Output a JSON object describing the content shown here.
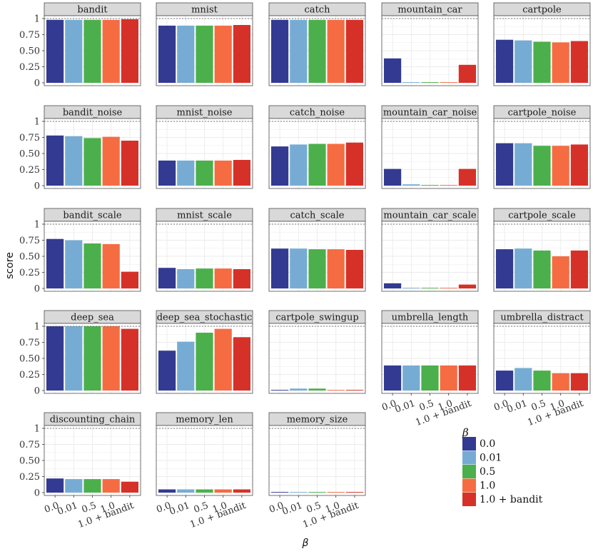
{
  "chart_data": {
    "type": "bar",
    "title": "",
    "xlabel": "β",
    "ylabel": "score",
    "ylim": [
      0,
      1
    ],
    "yticks": [
      0,
      0.25,
      0.5,
      0.75,
      1
    ],
    "ytick_labels": [
      "0",
      "0.25",
      "0.50",
      "0.75",
      "1"
    ],
    "reference_line": 1,
    "legend_title": "β",
    "legend_position": "bottom-right",
    "categories": [
      "0.0",
      "0.01",
      "0.5",
      "1.0",
      "1.0 + bandit"
    ],
    "colors": [
      "#333a91",
      "#76acd4",
      "#4bb04b",
      "#f56c42",
      "#d63128"
    ],
    "panels": [
      {
        "name": "bandit",
        "values": [
          0.98,
          0.98,
          0.98,
          0.98,
          0.99
        ]
      },
      {
        "name": "mnist",
        "values": [
          0.89,
          0.89,
          0.89,
          0.89,
          0.9
        ]
      },
      {
        "name": "catch",
        "values": [
          0.98,
          0.98,
          0.98,
          0.98,
          0.98
        ]
      },
      {
        "name": "mountain_car",
        "values": [
          0.38,
          0.01,
          0.01,
          0.01,
          0.28
        ]
      },
      {
        "name": "cartpole",
        "values": [
          0.67,
          0.66,
          0.64,
          0.63,
          0.65
        ]
      },
      {
        "name": "bandit_noise",
        "values": [
          0.78,
          0.77,
          0.74,
          0.76,
          0.7
        ]
      },
      {
        "name": "mnist_noise",
        "values": [
          0.39,
          0.39,
          0.39,
          0.39,
          0.4
        ]
      },
      {
        "name": "catch_noise",
        "values": [
          0.61,
          0.64,
          0.65,
          0.65,
          0.67
        ]
      },
      {
        "name": "mountain_car_noise",
        "values": [
          0.26,
          0.02,
          0.01,
          0.01,
          0.26
        ]
      },
      {
        "name": "cartpole_noise",
        "values": [
          0.66,
          0.66,
          0.62,
          0.62,
          0.64
        ]
      },
      {
        "name": "bandit_scale",
        "values": [
          0.77,
          0.75,
          0.7,
          0.69,
          0.26
        ]
      },
      {
        "name": "mnist_scale",
        "values": [
          0.32,
          0.3,
          0.31,
          0.31,
          0.3
        ]
      },
      {
        "name": "catch_scale",
        "values": [
          0.62,
          0.62,
          0.61,
          0.61,
          0.6
        ]
      },
      {
        "name": "mountain_car_scale",
        "values": [
          0.08,
          0.01,
          0.01,
          0.01,
          0.06
        ]
      },
      {
        "name": "cartpole_scale",
        "values": [
          0.61,
          0.62,
          0.59,
          0.5,
          0.59
        ]
      },
      {
        "name": "deep_sea",
        "values": [
          1.0,
          1.0,
          1.0,
          1.0,
          0.96
        ]
      },
      {
        "name": "deep_sea_stochastic",
        "values": [
          0.62,
          0.76,
          0.9,
          0.96,
          0.83
        ]
      },
      {
        "name": "cartpole_swingup",
        "values": [
          0.01,
          0.03,
          0.03,
          0.01,
          0.01
        ]
      },
      {
        "name": "umbrella_length",
        "values": [
          0.39,
          0.39,
          0.39,
          0.39,
          0.39
        ]
      },
      {
        "name": "umbrella_distract",
        "values": [
          0.31,
          0.35,
          0.31,
          0.27,
          0.27
        ]
      },
      {
        "name": "discounting_chain",
        "values": [
          0.22,
          0.21,
          0.21,
          0.21,
          0.17
        ]
      },
      {
        "name": "memory_len",
        "values": [
          0.05,
          0.05,
          0.05,
          0.05,
          0.05
        ]
      },
      {
        "name": "memory_size",
        "values": [
          0.01,
          0.01,
          0.01,
          0.01,
          0.01
        ]
      }
    ]
  }
}
